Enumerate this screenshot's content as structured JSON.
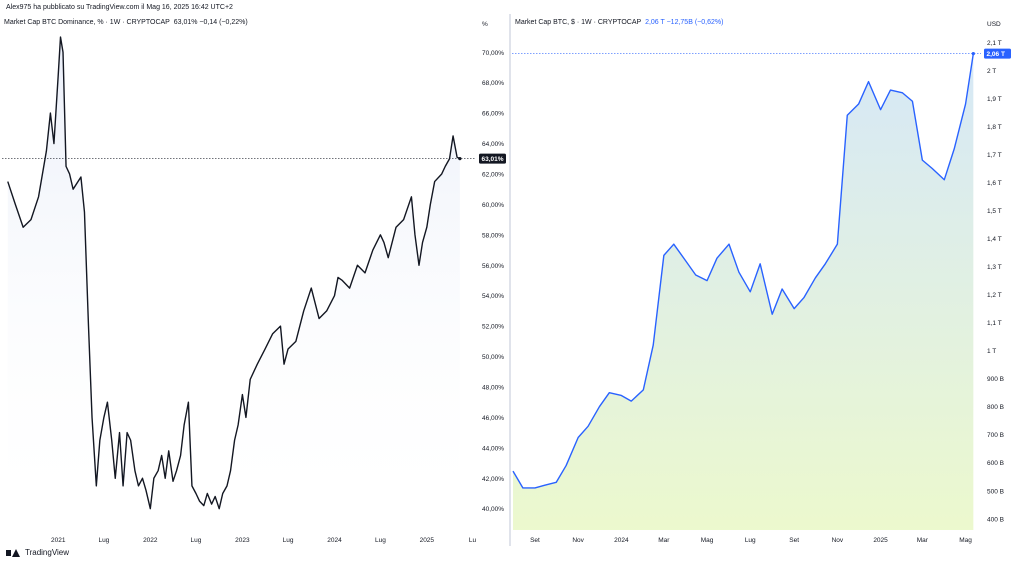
{
  "header": {
    "publisher_line": "Alex975 ha pubblicato su TradingView.com il Mag 16, 2025 16:42 UTC+2"
  },
  "footer": {
    "brand": "TradingView"
  },
  "colors": {
    "left_line": "#131722",
    "right_line": "#2962ff",
    "price_tag_left": "#131722",
    "price_tag_right": "#2962ff"
  },
  "chart_data": [
    {
      "type": "line",
      "title": "Market Cap BTC Dominance, % · 1W · CRYPTOCAP",
      "legend_values": "63,01%  −0,14 (−0,22%)",
      "ylabel": "%",
      "last_value_label": "63,01%",
      "last_value": 63.01,
      "ylim": [
        38.6,
        71.2
      ],
      "y_ticks": [
        40,
        42,
        44,
        46,
        48,
        50,
        52,
        54,
        56,
        58,
        60,
        62,
        64,
        66,
        68,
        70
      ],
      "y_tick_labels": [
        "40,00%",
        "42,00%",
        "44,00%",
        "46,00%",
        "48,00%",
        "50,00%",
        "52,00%",
        "54,00%",
        "56,00%",
        "58,00%",
        "60,00%",
        "62,00%",
        "64,00%",
        "66,00%",
        "68,00%",
        "70,00%"
      ],
      "x_range": [
        "2020-06-08",
        "2025-07-07"
      ],
      "x_ticks": [
        {
          "date": "2021-01-01",
          "label": "2021"
        },
        {
          "date": "2021-07-01",
          "label": "Lug"
        },
        {
          "date": "2022-01-01",
          "label": "2022"
        },
        {
          "date": "2022-07-01",
          "label": "Lug"
        },
        {
          "date": "2023-01-01",
          "label": "2023"
        },
        {
          "date": "2023-07-01",
          "label": "Lug"
        },
        {
          "date": "2024-01-01",
          "label": "2024"
        },
        {
          "date": "2024-07-01",
          "label": "Lug"
        },
        {
          "date": "2025-01-01",
          "label": "2025"
        },
        {
          "date": "2025-07-01",
          "label": "Lu"
        }
      ],
      "series": [
        {
          "x": [
            "2020-06-15",
            "2020-07-15",
            "2020-08-15",
            "2020-09-15",
            "2020-10-15",
            "2020-11-15",
            "2020-12-01",
            "2020-12-15",
            "2021-01-01",
            "2021-01-10",
            "2021-01-20",
            "2021-02-01",
            "2021-02-15",
            "2021-03-01",
            "2021-04-01",
            "2021-04-15",
            "2021-05-01",
            "2021-05-15",
            "2021-06-01",
            "2021-06-15",
            "2021-07-01",
            "2021-07-15",
            "2021-08-01",
            "2021-08-15",
            "2021-09-01",
            "2021-09-15",
            "2021-10-01",
            "2021-10-15",
            "2021-11-01",
            "2021-11-15",
            "2021-12-01",
            "2021-12-15",
            "2022-01-01",
            "2022-01-15",
            "2022-02-01",
            "2022-02-15",
            "2022-03-01",
            "2022-03-15",
            "2022-04-01",
            "2022-04-15",
            "2022-05-01",
            "2022-05-15",
            "2022-06-01",
            "2022-06-15",
            "2022-07-01",
            "2022-07-15",
            "2022-08-01",
            "2022-08-15",
            "2022-09-01",
            "2022-09-15",
            "2022-10-01",
            "2022-10-15",
            "2022-11-01",
            "2022-11-15",
            "2022-12-01",
            "2022-12-15",
            "2023-01-01",
            "2023-01-15",
            "2023-02-01",
            "2023-03-01",
            "2023-04-01",
            "2023-05-01",
            "2023-06-01",
            "2023-06-15",
            "2023-07-01",
            "2023-08-01",
            "2023-09-01",
            "2023-10-01",
            "2023-11-01",
            "2023-12-01",
            "2024-01-01",
            "2024-01-15",
            "2024-02-01",
            "2024-03-01",
            "2024-04-01",
            "2024-05-01",
            "2024-06-01",
            "2024-07-01",
            "2024-07-15",
            "2024-08-01",
            "2024-09-01",
            "2024-10-01",
            "2024-11-01",
            "2024-11-15",
            "2024-12-01",
            "2024-12-15",
            "2025-01-01",
            "2025-01-15",
            "2025-02-01",
            "2025-03-01",
            "2025-03-15",
            "2025-04-01",
            "2025-04-15",
            "2025-05-01",
            "2025-05-12"
          ],
          "y": [
            61.5,
            60.0,
            58.5,
            59.0,
            60.5,
            63.5,
            66.0,
            64.0,
            68.5,
            71.0,
            70.0,
            62.5,
            62.0,
            61.0,
            61.8,
            59.5,
            52.0,
            46.0,
            41.5,
            44.5,
            46.0,
            47.0,
            44.5,
            42.0,
            45.0,
            41.5,
            45.0,
            44.5,
            42.5,
            41.5,
            42.0,
            41.2,
            40.0,
            42.0,
            42.5,
            43.5,
            42.0,
            43.8,
            41.8,
            42.5,
            43.5,
            45.5,
            47.0,
            41.5,
            41.0,
            40.5,
            40.2,
            41.0,
            40.3,
            40.8,
            40.0,
            41.0,
            41.5,
            42.5,
            44.5,
            45.5,
            47.5,
            46.0,
            48.5,
            49.5,
            50.5,
            51.5,
            52.0,
            49.5,
            50.5,
            51.0,
            53.0,
            54.5,
            52.5,
            53.0,
            54.0,
            55.2,
            55.0,
            54.5,
            56.0,
            55.5,
            57.0,
            58.0,
            57.5,
            56.5,
            58.5,
            59.0,
            60.5,
            58.0,
            56.0,
            57.5,
            58.5,
            60.0,
            61.5,
            62.0,
            62.5,
            63.0,
            64.5,
            63.1,
            63.01
          ]
        }
      ]
    },
    {
      "type": "area",
      "title": "Market Cap BTC, $ · 1W · CRYPTOCAP",
      "legend_values": "2,06 T  −12,75B (−0,62%)",
      "ylabel": "USD",
      "last_value_label": "2,06 T",
      "last_value": 2.06,
      "y_units": "trillion USD",
      "ylim": [
        0.36,
        2.13
      ],
      "y_ticks": [
        0.4,
        0.5,
        0.6,
        0.7,
        0.8,
        0.9,
        1.0,
        1.1,
        1.2,
        1.3,
        1.4,
        1.5,
        1.6,
        1.7,
        1.8,
        1.9,
        2.0,
        2.1
      ],
      "y_tick_labels": [
        "400 B",
        "500 B",
        "600 B",
        "700 B",
        "800 B",
        "900 B",
        "1 T",
        "1,1 T",
        "1,2 T",
        "1,3 T",
        "1,4 T",
        "1,5 T",
        "1,6 T",
        "1,7 T",
        "1,8 T",
        "1,9 T",
        "2 T",
        "2,1 T"
      ],
      "x_range": [
        "2023-08-01",
        "2025-05-20"
      ],
      "x_ticks": [
        {
          "date": "2023-09-01",
          "label": "Set"
        },
        {
          "date": "2023-11-01",
          "label": "Nov"
        },
        {
          "date": "2024-01-01",
          "label": "2024"
        },
        {
          "date": "2024-03-01",
          "label": "Mar"
        },
        {
          "date": "2024-05-01",
          "label": "Mag"
        },
        {
          "date": "2024-07-01",
          "label": "Lug"
        },
        {
          "date": "2024-09-01",
          "label": "Set"
        },
        {
          "date": "2024-11-01",
          "label": "Nov"
        },
        {
          "date": "2025-01-01",
          "label": "2025"
        },
        {
          "date": "2025-03-01",
          "label": "Mar"
        },
        {
          "date": "2025-05-01",
          "label": "Mag"
        }
      ],
      "series": [
        {
          "x": [
            "2023-08-01",
            "2023-08-15",
            "2023-09-01",
            "2023-09-15",
            "2023-10-01",
            "2023-10-15",
            "2023-11-01",
            "2023-11-15",
            "2023-12-01",
            "2023-12-15",
            "2024-01-01",
            "2024-01-15",
            "2024-02-01",
            "2024-02-15",
            "2024-03-01",
            "2024-03-15",
            "2024-04-01",
            "2024-04-15",
            "2024-05-01",
            "2024-05-15",
            "2024-06-01",
            "2024-06-15",
            "2024-07-01",
            "2024-07-15",
            "2024-08-01",
            "2024-08-15",
            "2024-09-01",
            "2024-09-15",
            "2024-10-01",
            "2024-10-15",
            "2024-11-01",
            "2024-11-15",
            "2024-12-01",
            "2024-12-15",
            "2025-01-01",
            "2025-01-15",
            "2025-02-01",
            "2025-02-15",
            "2025-03-01",
            "2025-03-15",
            "2025-04-01",
            "2025-04-15",
            "2025-05-01",
            "2025-05-12"
          ],
          "y": [
            0.57,
            0.51,
            0.51,
            0.52,
            0.53,
            0.59,
            0.69,
            0.73,
            0.8,
            0.85,
            0.84,
            0.82,
            0.86,
            1.02,
            1.34,
            1.38,
            1.32,
            1.27,
            1.25,
            1.33,
            1.38,
            1.28,
            1.21,
            1.31,
            1.13,
            1.22,
            1.15,
            1.19,
            1.26,
            1.31,
            1.38,
            1.84,
            1.88,
            1.96,
            1.86,
            1.93,
            1.92,
            1.89,
            1.68,
            1.65,
            1.61,
            1.72,
            1.88,
            2.06
          ]
        }
      ]
    }
  ]
}
